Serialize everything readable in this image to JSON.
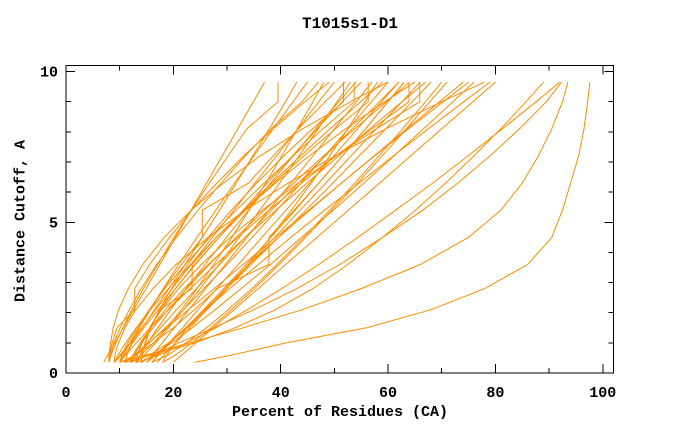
{
  "page": {
    "background": "#ffffff"
  },
  "chart_data": {
    "type": "line",
    "title": "T1015s1-D1",
    "xlabel": "Percent of Residues (CA)",
    "ylabel": "Distance Cutoff, A",
    "xlim": [
      0,
      102
    ],
    "ylim": [
      0,
      10.2
    ],
    "x_major_ticks": [
      0,
      20,
      40,
      60,
      80,
      100
    ],
    "x_minor_ticks": [
      10,
      30,
      50,
      70,
      90
    ],
    "x_tick_labels": [
      "0",
      "20",
      "40",
      "60",
      "80",
      "100"
    ],
    "y_major_ticks": [
      0,
      5,
      10
    ],
    "y_minor_ticks": [
      1,
      2,
      3,
      4,
      6,
      7,
      8,
      9
    ],
    "y_tick_labels": [
      "0",
      "5",
      "10"
    ],
    "grid": false,
    "legend": "none",
    "line_color": "#ff8c00",
    "axis_color": "#000000",
    "background": "#ffffff",
    "y_levels": [
      0.35,
      0.6,
      1.0,
      1.5,
      2.1,
      2.8,
      3.6,
      4.5,
      5.4,
      6.3,
      7.2,
      8.1,
      9.0,
      9.65
    ],
    "series": [
      [
        7,
        7.8,
        9.1,
        10.7,
        12.6,
        14.9,
        17.5,
        20.4,
        23.3,
        26.2,
        29.1,
        32.0,
        34.9,
        37
      ],
      [
        8,
        8.4,
        9.3,
        10.6,
        12.3,
        14.4,
        17.1,
        20.1,
        23.4,
        26.7,
        30.2,
        33.7,
        39.5,
        39.5
      ],
      [
        9,
        10.3,
        12.1,
        14.2,
        16.5,
        19.2,
        22.2,
        25.4,
        28.6,
        31.7,
        34.8,
        37.9,
        40.9,
        43
      ],
      [
        10,
        10.7,
        11.9,
        13.5,
        15.6,
        18.1,
        21.0,
        24.4,
        27.9,
        31.4,
        35.0,
        38.6,
        42.3,
        45
      ],
      [
        8,
        8.3,
        8.9,
        10.1,
        11.8,
        14.0,
        16.9,
        20.6,
        24.6,
        28.9,
        33.4,
        38.2,
        44.0,
        47
      ],
      [
        12,
        14.0,
        16.3,
        18.8,
        21.5,
        24.4,
        27.5,
        30.9,
        34.1,
        37.2,
        40.2,
        43.1,
        46.0,
        48
      ],
      [
        9,
        10.1,
        11.9,
        14.1,
        16.7,
        19.8,
        23.3,
        27.3,
        31.3,
        35.2,
        39.2,
        43.2,
        47.1,
        50
      ],
      [
        11,
        11.4,
        12.3,
        13.7,
        15.7,
        18.2,
        21.5,
        25.4,
        25.4,
        34.0,
        38.6,
        43.3,
        48.3,
        52
      ],
      [
        13,
        14.6,
        16.7,
        19.1,
        21.9,
        25.0,
        28.5,
        32.3,
        36.1,
        39.8,
        43.4,
        47.0,
        50.5,
        53
      ],
      [
        10,
        10.9,
        12.4,
        14.5,
        17.2,
        20.4,
        24.1,
        28.5,
        33.0,
        37.5,
        42.2,
        46.8,
        51.5,
        55
      ],
      [
        14,
        14.2,
        14.8,
        15.8,
        17.4,
        19.7,
        22.7,
        26.5,
        30.8,
        35.5,
        40.6,
        45.9,
        51.7,
        51.7
      ],
      [
        12,
        15.6,
        19.1,
        22.7,
        26.3,
        30.0,
        34.0,
        38.1,
        42.0,
        45.7,
        49.1,
        52.5,
        55.7,
        58
      ],
      [
        8,
        8.1,
        8.6,
        9.5,
        12.8,
        12.8,
        15.6,
        19.3,
        23.4,
        28.1,
        33.1,
        38.6,
        44.5,
        49
      ],
      [
        15,
        16.1,
        17.9,
        20.2,
        22.9,
        26.0,
        29.7,
        33.7,
        37.8,
        41.9,
        46.0,
        50.0,
        54.1,
        57
      ],
      [
        9,
        9.7,
        11.1,
        13.1,
        15.7,
        19.1,
        23.2,
        28.0,
        33.1,
        38.3,
        43.7,
        49.2,
        54.9,
        59
      ],
      [
        11,
        12.9,
        15.5,
        18.5,
        21.9,
        25.7,
        30.0,
        34.7,
        39.3,
        43.8,
        48.2,
        52.6,
        56.9,
        60
      ],
      [
        13,
        13.3,
        14.2,
        15.6,
        17.6,
        20.4,
        24.0,
        28.5,
        33.4,
        38.7,
        44.3,
        50.2,
        56.3,
        56.3
      ],
      [
        16,
        17.2,
        19.2,
        21.7,
        24.6,
        28.1,
        32.1,
        36.5,
        41.0,
        45.4,
        49.9,
        54.3,
        58.8,
        62
      ],
      [
        10,
        13.0,
        16.3,
        20.0,
        23.9,
        28.2,
        37.8,
        37.8,
        42.5,
        47.1,
        51.5,
        55.8,
        60.0,
        63
      ],
      [
        12,
        12.7,
        14.1,
        16.2,
        19.0,
        22.5,
        26.7,
        31.7,
        37.0,
        42.4,
        48.0,
        53.8,
        59.7,
        64
      ],
      [
        14,
        14.2,
        14.7,
        15.8,
        17.5,
        23.5,
        23.5,
        28.0,
        33.2,
        39.0,
        45.3,
        52.1,
        59.4,
        65
      ],
      [
        17,
        18.3,
        20.4,
        23.1,
        26.2,
        29.9,
        34.1,
        38.9,
        43.6,
        48.4,
        53.1,
        57.8,
        62.6,
        66
      ],
      [
        8,
        8.0,
        8.3,
        8.8,
        9.8,
        11.6,
        14.3,
        18.3,
        23.3,
        29.3,
        36.2,
        44.1,
        53.0,
        60
      ],
      [
        15,
        16.9,
        19.4,
        22.3,
        25.7,
        29.4,
        33.6,
        38.2,
        42.7,
        47.1,
        51.5,
        55.8,
        60.0,
        63
      ],
      [
        10,
        11.1,
        13.1,
        15.7,
        19.1,
        23.1,
        27.9,
        33.4,
        39.1,
        44.9,
        50.8,
        56.6,
        62.6,
        67
      ],
      [
        12,
        12.5,
        13.8,
        15.8,
        18.5,
        22.0,
        26.5,
        32.0,
        37.8,
        43.9,
        50.3,
        57.0,
        63.9,
        63.9
      ],
      [
        16,
        19.0,
        22.4,
        26.2,
        30.2,
        34.6,
        39.3,
        44.3,
        49.1,
        53.8,
        58.3,
        62.7,
        67.0,
        70
      ],
      [
        13,
        13.3,
        14.1,
        15.6,
        17.8,
        21.0,
        25.2,
        30.6,
        36.6,
        43.2,
        50.3,
        57.8,
        65.9,
        65.9
      ],
      [
        11,
        12.7,
        15.4,
        18.8,
        22.8,
        27.6,
        33.0,
        39.1,
        45.2,
        51.3,
        57.4,
        63.5,
        69.6,
        74
      ],
      [
        18,
        18.8,
        20.3,
        22.6,
        25.6,
        29.5,
        34.1,
        39.6,
        45.4,
        51.3,
        57.5,
        63.8,
        70.3,
        75
      ],
      [
        14,
        16.4,
        19.7,
        23.5,
        27.8,
        32.6,
        38.1,
        43.9,
        49.8,
        55.5,
        61.1,
        66.6,
        72.1,
        76
      ],
      [
        9,
        9.1,
        9.8,
        11.0,
        13.0,
        16.2,
        20.5,
        26.5,
        33.4,
        41.4,
        50.1,
        59.6,
        70.0,
        78
      ],
      [
        16,
        17.2,
        19.4,
        22.3,
        26.0,
        30.5,
        35.8,
        41.9,
        48.2,
        54.6,
        61.0,
        67.5,
        74.1,
        79
      ],
      [
        20,
        21.6,
        24.2,
        27.4,
        31.3,
        35.8,
        40.9,
        46.8,
        52.6,
        58.4,
        64.2,
        70.0,
        75.8,
        80
      ],
      [
        24,
        31,
        41,
        56,
        68,
        78,
        86,
        90.5,
        92.5,
        94,
        95.5,
        96.5,
        97.2,
        97.6
      ],
      [
        10,
        15,
        23,
        33,
        44,
        55,
        66,
        75,
        81,
        85,
        88,
        90.5,
        92.5,
        93.5
      ],
      [
        14,
        16.5,
        21,
        27.5,
        35,
        43,
        51,
        59,
        66.5,
        73,
        79,
        84.5,
        89.5,
        92.3
      ],
      [
        11,
        16,
        24,
        31.5,
        39,
        46,
        52.5,
        59,
        65.1,
        70.7,
        76,
        81,
        85.7,
        89
      ],
      [
        13,
        17.4,
        22.4,
        27.9,
        33.8,
        40.2,
        47.1,
        54.4,
        61.4,
        68.3,
        74.9,
        81.3,
        87.6,
        92
      ],
      [
        13,
        13.8,
        15.2,
        17.1,
        19.5,
        22.4,
        25.9,
        29.9,
        34.0,
        38.1,
        42.3,
        46.5,
        50.8,
        54
      ],
      [
        15,
        16.7,
        19.2,
        22.3,
        25.9,
        29.9,
        34.5,
        39.6,
        44.7,
        49.7,
        54.6,
        59.6,
        64.5,
        68
      ],
      [
        10,
        10.4,
        11.5,
        13.2,
        15.5,
        18.4,
        22.2,
        26.8,
        31.7,
        36.9,
        42.3,
        47.9,
        53.7,
        53.7
      ],
      [
        18,
        20.4,
        23.5,
        27.0,
        30.8,
        35.1,
        39.7,
        44.7,
        49.5,
        54.3,
        58.9,
        63.4,
        67.8,
        71
      ],
      [
        12,
        13.1,
        15.1,
        17.6,
        20.6,
        24.3,
        28.6,
        33.4,
        38.3,
        43.3,
        48.3,
        53.3,
        58.4,
        62
      ]
    ]
  }
}
